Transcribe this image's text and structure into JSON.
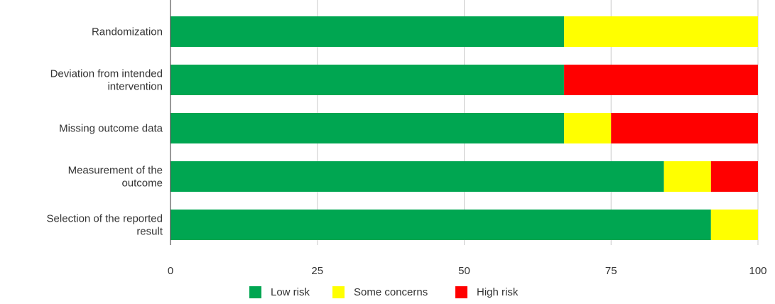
{
  "chart_data": {
    "type": "bar",
    "orientation": "horizontal",
    "stacked": true,
    "categories": [
      "Randomization",
      "Deviation from intended intervention",
      "Missing outcome data",
      "Measurement of the outcome",
      "Selection of the reported result"
    ],
    "category_lines": [
      [
        "Randomization"
      ],
      [
        "Deviation from intended",
        "intervention"
      ],
      [
        "Missing outcome data"
      ],
      [
        "Measurement of the",
        "outcome"
      ],
      [
        "Selection of the reported",
        "result"
      ]
    ],
    "series": [
      {
        "name": "Low risk",
        "color": "#00a651",
        "values": [
          67,
          67,
          67,
          84,
          92
        ]
      },
      {
        "name": "Some concerns",
        "color": "#ffff00",
        "values": [
          33,
          0,
          8,
          8,
          8
        ]
      },
      {
        "name": "High risk",
        "color": "#ff0000",
        "values": [
          0,
          33,
          25,
          8,
          0
        ]
      }
    ],
    "xlim": [
      0,
      100
    ],
    "xticks": [
      0,
      25,
      50,
      75,
      100
    ],
    "grid": true,
    "legend_position": "bottom-center",
    "xlabel": "",
    "ylabel": "",
    "title": ""
  }
}
